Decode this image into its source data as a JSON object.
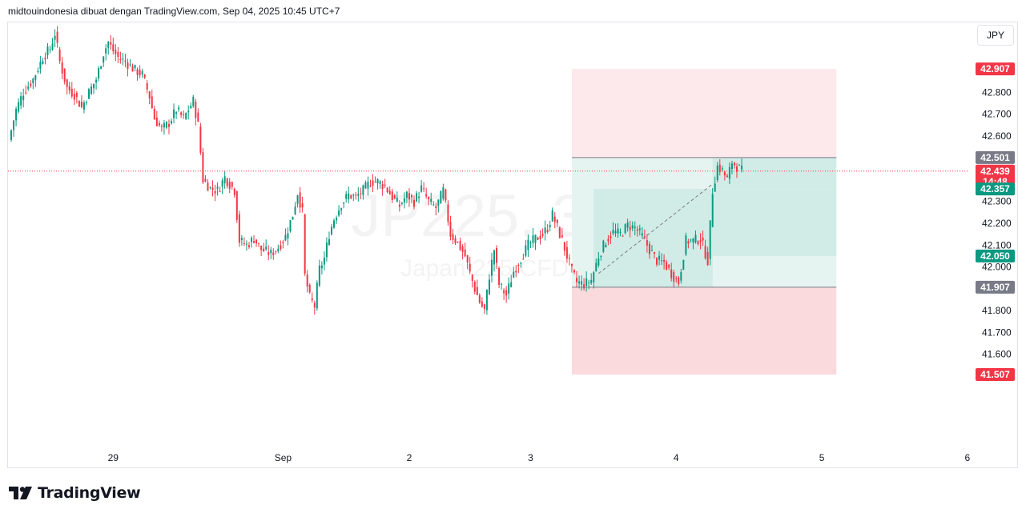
{
  "header": {
    "caption": "midtouindonesia dibuat dengan TradingView.com, Sep 04, 2025 10:45 UTC+7"
  },
  "currency": "JPY",
  "brand": {
    "name": "TradingView",
    "icon": "tradingview-logo-icon"
  },
  "watermark": {
    "line1": "JP225, 30",
    "line2": "Japan 225 CFD"
  },
  "colors": {
    "up": "#089981",
    "down": "#f23645",
    "grid_text": "#131722",
    "profit_fill": "#d1ece6",
    "profit_fill_light": "#e6f4f1",
    "loss_fill": "#fadadd",
    "loss_fill_light": "#fde9eb",
    "badge_gray": "#787b86"
  },
  "chart_data": {
    "type": "candlestick",
    "symbol": "JP225",
    "timeframe": "30",
    "ylim": [
      41.17,
      43.12
    ],
    "yticks": [
      42.8,
      42.7,
      42.6,
      42.3,
      42.2,
      42.1,
      42.0,
      41.8,
      41.7,
      41.6
    ],
    "ytick_labels": [
      "42.800",
      "42.700",
      "42.600",
      "42.300",
      "42.200",
      "42.100",
      "42.000",
      "41.800",
      "41.700",
      "41.600"
    ],
    "xticks": [
      {
        "label": "29",
        "bar": 43
      },
      {
        "label": "Sep",
        "bar": 113
      },
      {
        "label": "2",
        "bar": 165
      },
      {
        "label": "3",
        "bar": 215
      },
      {
        "label": "4",
        "bar": 275
      },
      {
        "label": "5",
        "bar": 335
      },
      {
        "label": "6",
        "bar": 395
      }
    ],
    "price_badges": [
      {
        "label": "42.907",
        "value": 42.907,
        "color": "#f23645"
      },
      {
        "label": "42.501",
        "value": 42.501,
        "color": "#787b86"
      },
      {
        "label": "42.439",
        "sub": "14:48",
        "value": 42.439,
        "color": "#f23645"
      },
      {
        "label": "42.357",
        "value": 42.357,
        "color": "#089981"
      },
      {
        "label": "42.050",
        "value": 42.05,
        "color": "#089981"
      },
      {
        "label": "41.907",
        "value": 41.907,
        "color": "#787b86"
      },
      {
        "label": "41.507",
        "value": 41.507,
        "color": "#f23645"
      }
    ],
    "current_price": 42.439,
    "position": {
      "side": "short",
      "entry": 41.907,
      "stop": 41.507,
      "target": 42.907,
      "inner_top": 42.501,
      "start_bar": 232,
      "end_bar": 341
    },
    "close_path": [
      [
        0,
        42.58
      ],
      [
        3,
        42.72
      ],
      [
        6,
        42.8
      ],
      [
        10,
        42.86
      ],
      [
        14,
        42.96
      ],
      [
        17,
        43.0
      ],
      [
        19,
        43.07
      ],
      [
        21,
        42.94
      ],
      [
        24,
        42.82
      ],
      [
        27,
        42.79
      ],
      [
        30,
        42.73
      ],
      [
        33,
        42.8
      ],
      [
        36,
        42.86
      ],
      [
        39,
        42.98
      ],
      [
        41,
        43.03
      ],
      [
        43,
        42.99
      ],
      [
        45,
        42.96
      ],
      [
        48,
        42.94
      ],
      [
        51,
        42.91
      ],
      [
        55,
        42.88
      ],
      [
        58,
        42.78
      ],
      [
        60,
        42.68
      ],
      [
        63,
        42.63
      ],
      [
        66,
        42.66
      ],
      [
        69,
        42.72
      ],
      [
        72,
        42.68
      ],
      [
        74,
        42.72
      ],
      [
        76,
        42.76
      ],
      [
        78,
        42.65
      ],
      [
        80,
        42.4
      ],
      [
        83,
        42.36
      ],
      [
        86,
        42.35
      ],
      [
        89,
        42.41
      ],
      [
        91,
        42.38
      ],
      [
        93,
        42.35
      ],
      [
        95,
        42.12
      ],
      [
        98,
        42.1
      ],
      [
        101,
        42.13
      ],
      [
        104,
        42.08
      ],
      [
        108,
        42.06
      ],
      [
        111,
        42.09
      ],
      [
        114,
        42.14
      ],
      [
        117,
        42.24
      ],
      [
        119,
        42.34
      ],
      [
        121,
        42.25
      ],
      [
        122,
        41.96
      ],
      [
        124,
        41.86
      ],
      [
        126,
        41.82
      ],
      [
        128,
        41.99
      ],
      [
        130,
        42.04
      ],
      [
        132,
        42.15
      ],
      [
        134,
        42.22
      ],
      [
        137,
        42.29
      ],
      [
        140,
        42.33
      ],
      [
        143,
        42.32
      ],
      [
        146,
        42.35
      ],
      [
        149,
        42.39
      ],
      [
        152,
        42.39
      ],
      [
        155,
        42.37
      ],
      [
        158,
        42.32
      ],
      [
        161,
        42.28
      ],
      [
        164,
        42.33
      ],
      [
        167,
        42.3
      ],
      [
        170,
        42.36
      ],
      [
        173,
        42.3
      ],
      [
        176,
        42.27
      ],
      [
        179,
        42.35
      ],
      [
        182,
        42.15
      ],
      [
        185,
        42.11
      ],
      [
        188,
        42.05
      ],
      [
        190,
        41.97
      ],
      [
        192,
        41.9
      ],
      [
        194,
        41.84
      ],
      [
        196,
        41.8
      ],
      [
        198,
        41.96
      ],
      [
        200,
        42.08
      ],
      [
        202,
        41.92
      ],
      [
        205,
        41.87
      ],
      [
        208,
        41.98
      ],
      [
        211,
        42.04
      ],
      [
        214,
        42.1
      ],
      [
        217,
        42.13
      ],
      [
        220,
        42.15
      ],
      [
        222,
        42.18
      ],
      [
        224,
        42.24
      ],
      [
        226,
        42.18
      ],
      [
        228,
        42.12
      ],
      [
        230,
        42.05
      ],
      [
        232,
        41.98
      ],
      [
        234,
        41.93
      ],
      [
        237,
        41.92
      ],
      [
        240,
        41.94
      ],
      [
        243,
        42.05
      ],
      [
        246,
        42.12
      ],
      [
        249,
        42.16
      ],
      [
        252,
        42.15
      ],
      [
        255,
        42.19
      ],
      [
        258,
        42.18
      ],
      [
        261,
        42.14
      ],
      [
        264,
        42.08
      ],
      [
        267,
        42.03
      ],
      [
        270,
        42.02
      ],
      [
        273,
        41.97
      ],
      [
        276,
        41.93
      ],
      [
        279,
        42.12
      ],
      [
        282,
        42.12
      ],
      [
        285,
        42.13
      ],
      [
        288,
        42.03
      ],
      [
        290,
        42.35
      ],
      [
        292,
        42.46
      ],
      [
        294,
        42.44
      ],
      [
        296,
        42.4
      ],
      [
        298,
        42.48
      ],
      [
        300,
        42.46
      ],
      [
        302,
        42.44
      ]
    ]
  }
}
